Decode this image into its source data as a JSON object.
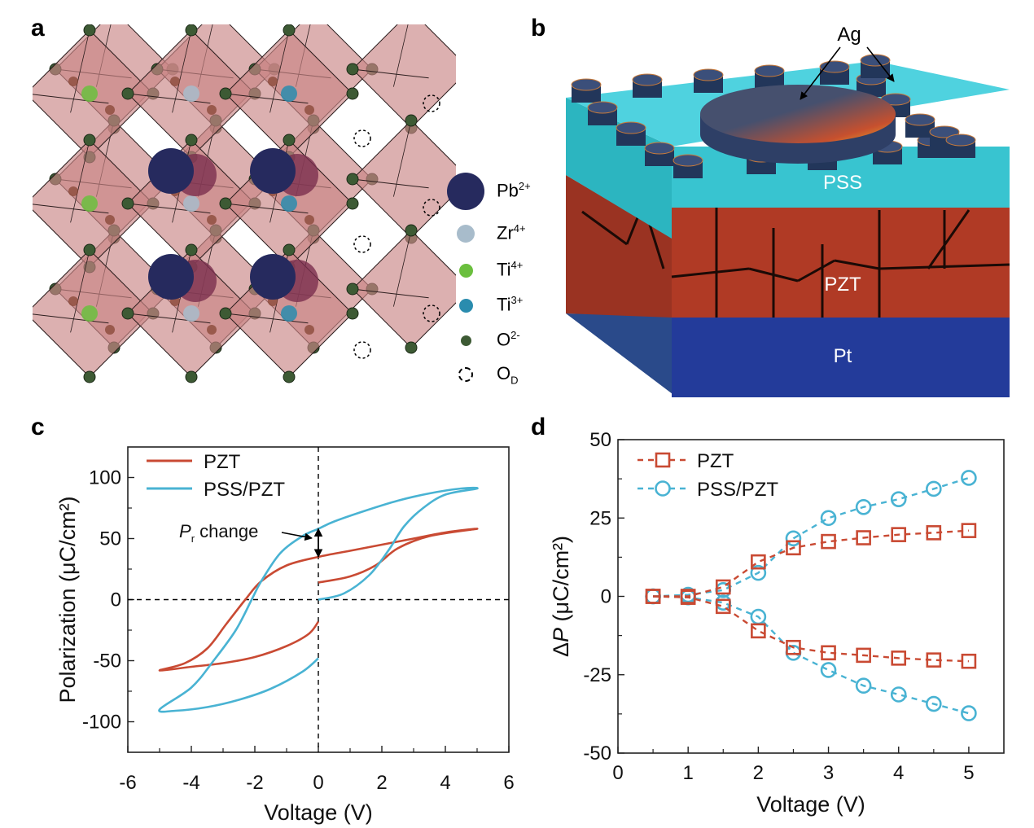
{
  "panels": {
    "a": {
      "letter": "a"
    },
    "b": {
      "letter": "b"
    },
    "c": {
      "letter": "c"
    },
    "d": {
      "letter": "d"
    }
  },
  "crystal_legend": [
    {
      "symbol": "Pb",
      "charge": "2+",
      "color": "#262a5e",
      "size": "large"
    },
    {
      "symbol": "Zr",
      "charge": "4+",
      "color": "#a8bccb",
      "size": "medium"
    },
    {
      "symbol": "Ti",
      "charge": "4+",
      "color": "#6bbf3e",
      "size": "small"
    },
    {
      "symbol": "Ti",
      "charge": "3+",
      "color": "#2a8cae",
      "size": "small"
    },
    {
      "symbol": "O",
      "charge": "2-",
      "color": "#3d5a34",
      "size": "tiny"
    },
    {
      "symbol": "O",
      "charge": "D",
      "color": "none",
      "size": "dashed",
      "subscript": true
    }
  ],
  "device": {
    "layers": [
      {
        "name": "PSS",
        "color": "#38c4d0"
      },
      {
        "name": "PZT",
        "color": "#b03a25"
      },
      {
        "name": "Pt",
        "color": "#233b9a"
      }
    ],
    "electrode_label": "Ag"
  },
  "chart_data": [
    {
      "id": "c",
      "type": "line",
      "title": "",
      "xlabel": "Voltage (V)",
      "ylabel": "Polarization (μC/cm²)",
      "xlim": [
        -6,
        6
      ],
      "ylim": [
        -125,
        125
      ],
      "xticks": [
        -6,
        -4,
        -2,
        0,
        2,
        4,
        6
      ],
      "yticks": [
        -100,
        -50,
        0,
        50,
        100
      ],
      "legend_position": "top-left",
      "annotation": {
        "text_italic": "P",
        "text_sub": "r",
        "text": " change",
        "x": 0,
        "y_from": 35,
        "y_to": 58
      },
      "series": [
        {
          "name": "PZT",
          "color": "#c94a33",
          "points": [
            [
              0,
              14
            ],
            [
              1,
              19
            ],
            [
              1.8,
              28
            ],
            [
              2.5,
              42
            ],
            [
              3.5,
              52
            ],
            [
              5,
              58
            ],
            [
              4,
              55
            ],
            [
              3,
              50
            ],
            [
              2,
              45
            ],
            [
              1,
              40
            ],
            [
              0,
              35
            ],
            [
              -1,
              28
            ],
            [
              -1.8,
              15
            ],
            [
              -2.3,
              0
            ],
            [
              -2.9,
              -20
            ],
            [
              -3.5,
              -40
            ],
            [
              -4.2,
              -52
            ],
            [
              -5,
              -58
            ],
            [
              -4,
              -55
            ],
            [
              -3,
              -52
            ],
            [
              -2,
              -47
            ],
            [
              -1,
              -38
            ],
            [
              -0.3,
              -28
            ],
            [
              0,
              -18
            ]
          ]
        },
        {
          "name": "PSS/PZT",
          "color": "#49b3d3",
          "points": [
            [
              0,
              0
            ],
            [
              0.8,
              5
            ],
            [
              1.6,
              20
            ],
            [
              2.2,
              40
            ],
            [
              2.7,
              60
            ],
            [
              3.3,
              75
            ],
            [
              4,
              86
            ],
            [
              5,
              91
            ],
            [
              4.5,
              91
            ],
            [
              3.5,
              87
            ],
            [
              2.5,
              81
            ],
            [
              1.5,
              73
            ],
            [
              0.5,
              64
            ],
            [
              0,
              58
            ],
            [
              -0.5,
              52
            ],
            [
              -1.2,
              38
            ],
            [
              -1.8,
              15
            ],
            [
              -2.1,
              0
            ],
            [
              -2.6,
              -25
            ],
            [
              -3.3,
              -50
            ],
            [
              -4,
              -72
            ],
            [
              -5,
              -90
            ],
            [
              -4.5,
              -91
            ],
            [
              -3.5,
              -88
            ],
            [
              -2.5,
              -82
            ],
            [
              -1.5,
              -73
            ],
            [
              -0.5,
              -59
            ],
            [
              0,
              -48
            ]
          ]
        }
      ]
    },
    {
      "id": "d",
      "type": "line",
      "title": "",
      "xlabel": "Voltage (V)",
      "ylabel_italic": "P",
      "ylabel_prefix": "Δ",
      "ylabel": " (μC/cm²)",
      "xlim": [
        0,
        5.5
      ],
      "ylim": [
        -50,
        50
      ],
      "xticks": [
        0,
        1,
        2,
        3,
        4,
        5
      ],
      "yticks": [
        -50,
        -25,
        0,
        25,
        50
      ],
      "legend_position": "top-left",
      "x": [
        0.5,
        1,
        1.5,
        2,
        2.5,
        3,
        3.5,
        4,
        4.5,
        5
      ],
      "series": [
        {
          "name": "PZT",
          "marker": "square",
          "color": "#c94a33",
          "upper": [
            0,
            0,
            3,
            11,
            15.5,
            17.5,
            18.7,
            19.7,
            20.3,
            21
          ],
          "lower": [
            0,
            -0.3,
            -3.2,
            -11,
            -16.3,
            -18,
            -18.8,
            -19.7,
            -20.3,
            -20.7
          ]
        },
        {
          "name": "PSS/PZT",
          "marker": "circle",
          "color": "#49b3d3",
          "upper": [
            0,
            0.5,
            2,
            7.5,
            18.5,
            25,
            28.5,
            31,
            34.3,
            37.8
          ],
          "lower": [
            0,
            -0.3,
            -2,
            -6.5,
            -18,
            -23.5,
            -28.5,
            -31.3,
            -34.3,
            -37.3
          ]
        }
      ]
    }
  ]
}
